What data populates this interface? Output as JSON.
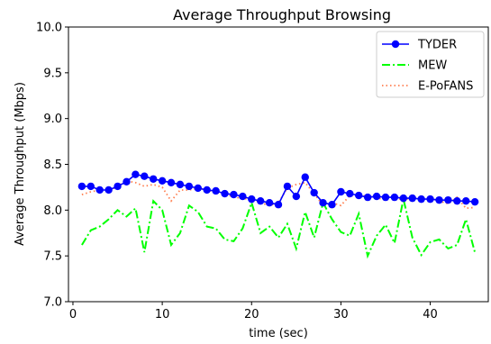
{
  "chart_data": {
    "type": "line",
    "title": "Average Throughput Browsing",
    "xlabel": "time (sec)",
    "ylabel": "Average Throughput (Mbps)",
    "xlim": [
      -0.5,
      46.5
    ],
    "ylim": [
      7.0,
      10.0
    ],
    "xticks": [
      0,
      10,
      20,
      30,
      40
    ],
    "yticks": [
      7.0,
      7.5,
      8.0,
      8.5,
      9.0,
      9.5,
      10.0
    ],
    "grid": false,
    "legend_position": "top-right",
    "x": [
      1,
      2,
      3,
      4,
      5,
      6,
      7,
      8,
      9,
      10,
      11,
      12,
      13,
      14,
      15,
      16,
      17,
      18,
      19,
      20,
      21,
      22,
      23,
      24,
      25,
      26,
      27,
      28,
      29,
      30,
      31,
      32,
      33,
      34,
      35,
      36,
      37,
      38,
      39,
      40,
      41,
      42,
      43,
      44,
      45
    ],
    "series": [
      {
        "name": "TYDER",
        "color": "#0000ff",
        "style": "solid-marker",
        "values": [
          8.26,
          8.26,
          8.22,
          8.22,
          8.26,
          8.31,
          8.39,
          8.37,
          8.34,
          8.32,
          8.3,
          8.28,
          8.26,
          8.24,
          8.22,
          8.21,
          8.18,
          8.17,
          8.15,
          8.12,
          8.1,
          8.08,
          8.06,
          8.26,
          8.15,
          8.36,
          8.19,
          8.08,
          8.06,
          8.2,
          8.18,
          8.16,
          8.14,
          8.15,
          8.14,
          8.14,
          8.13,
          8.13,
          8.12,
          8.12,
          8.11,
          8.11,
          8.1,
          8.1,
          8.09
        ]
      },
      {
        "name": "MEW",
        "color": "#00ff00",
        "style": "dashdot",
        "values": [
          7.62,
          7.78,
          7.82,
          7.9,
          8.0,
          7.93,
          8.02,
          7.54,
          8.1,
          8.0,
          7.62,
          7.75,
          8.05,
          7.98,
          7.82,
          7.8,
          7.68,
          7.66,
          7.8,
          8.08,
          7.75,
          7.82,
          7.7,
          7.85,
          7.58,
          7.98,
          7.7,
          8.08,
          7.9,
          7.76,
          7.72,
          7.96,
          7.5,
          7.72,
          7.84,
          7.64,
          8.12,
          7.7,
          7.51,
          7.65,
          7.68,
          7.58,
          7.62,
          7.9,
          7.54
        ]
      },
      {
        "name": "E-PoFANS",
        "color": "#ff7f50",
        "style": "dotted",
        "values": [
          8.17,
          8.2,
          8.22,
          8.21,
          8.26,
          8.32,
          8.3,
          8.26,
          8.28,
          8.25,
          8.1,
          8.22,
          8.22,
          8.24,
          8.22,
          8.2,
          8.17,
          8.15,
          8.12,
          8.13,
          8.08,
          8.05,
          8.08,
          8.24,
          8.28,
          8.3,
          8.18,
          8.05,
          8.08,
          8.05,
          8.16,
          8.15,
          8.16,
          8.13,
          8.12,
          8.14,
          8.11,
          8.14,
          8.12,
          8.13,
          8.1,
          8.07,
          8.14,
          8.02,
          8.03
        ]
      }
    ]
  }
}
